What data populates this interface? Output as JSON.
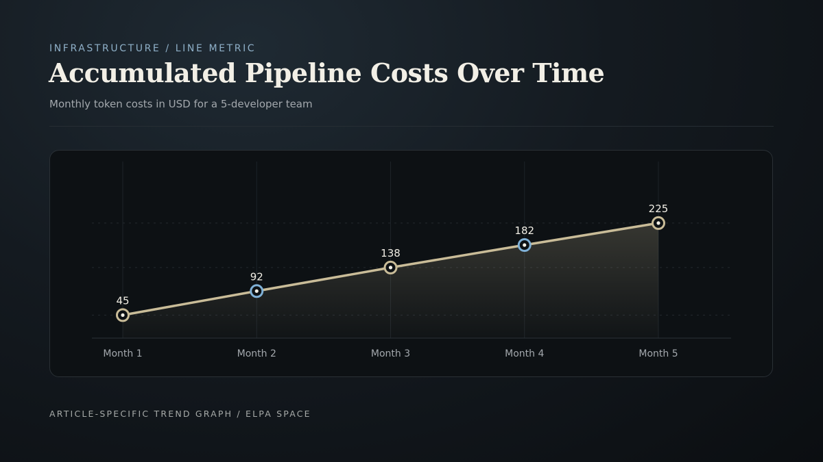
{
  "header": {
    "eyebrow": "INFRASTRUCTURE / LINE METRIC",
    "title": "Accumulated Pipeline Costs Over Time",
    "subtitle": "Monthly token costs in USD for a 5-developer team"
  },
  "footer": {
    "text": "ARTICLE-SPECIFIC TREND GRAPH / ELPA SPACE"
  },
  "colors": {
    "line": "#c9bc98",
    "marker_default": "#c9bc98",
    "marker_highlight": "#7fb0d6",
    "label": "#f2efe6",
    "axis_label": "#a3a8ad"
  },
  "chart_data": {
    "type": "line",
    "title": "Accumulated Pipeline Costs Over Time",
    "subtitle": "Monthly token costs in USD for a 5-developer team",
    "xlabel": "",
    "ylabel": "",
    "categories": [
      "Month 1",
      "Month 2",
      "Month 3",
      "Month 4",
      "Month 5"
    ],
    "series": [
      {
        "values": [
          45,
          92,
          138,
          182,
          225
        ],
        "highlighted": [
          false,
          true,
          false,
          true,
          false
        ]
      }
    ],
    "data_labels": [
      "45",
      "92",
      "138",
      "182",
      "225"
    ],
    "ylim": [
      0,
      283
    ],
    "grid": "faint vertical lines at each month, dashed horizontal reference lines",
    "area_fill": true,
    "legend": "none"
  }
}
